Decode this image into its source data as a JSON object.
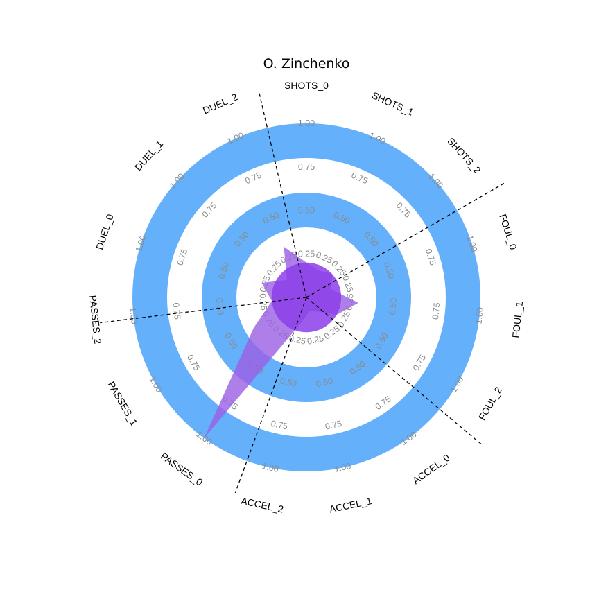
{
  "chart_data": {
    "type": "radar",
    "title": "O. Zinchenko",
    "params": [
      "SHOTS_0",
      "SHOTS_1",
      "SHOTS_2",
      "FOUL_0",
      "FOUL_1",
      "FOUL_2",
      "ACCEL_0",
      "ACCEL_1",
      "ACCEL_2",
      "PASSES_0",
      "PASSES_1",
      "PASSES_2",
      "DUEL_0",
      "DUEL_1",
      "DUEL_2"
    ],
    "ring_ticks": [
      "0.25",
      "0.50",
      "0.75",
      "1.00"
    ],
    "range": [
      0,
      1
    ],
    "values": [
      0.2,
      0.17,
      0.2,
      0.15,
      0.3,
      0.2,
      0.1,
      0.08,
      0.15,
      1.0,
      0.35,
      0.2,
      0.27,
      0.15,
      0.32
    ],
    "inner_disc": 0.2,
    "divider_angles_deg": [
      -13,
      60,
      130,
      200,
      263
    ],
    "colors": {
      "ring": "#64b0fb",
      "series": "#9b5fe4",
      "inner_disc": "#8b3ee9",
      "tick_text": "#8a8a8a",
      "label_text": "#000000"
    },
    "grid": false,
    "legend": "none"
  }
}
